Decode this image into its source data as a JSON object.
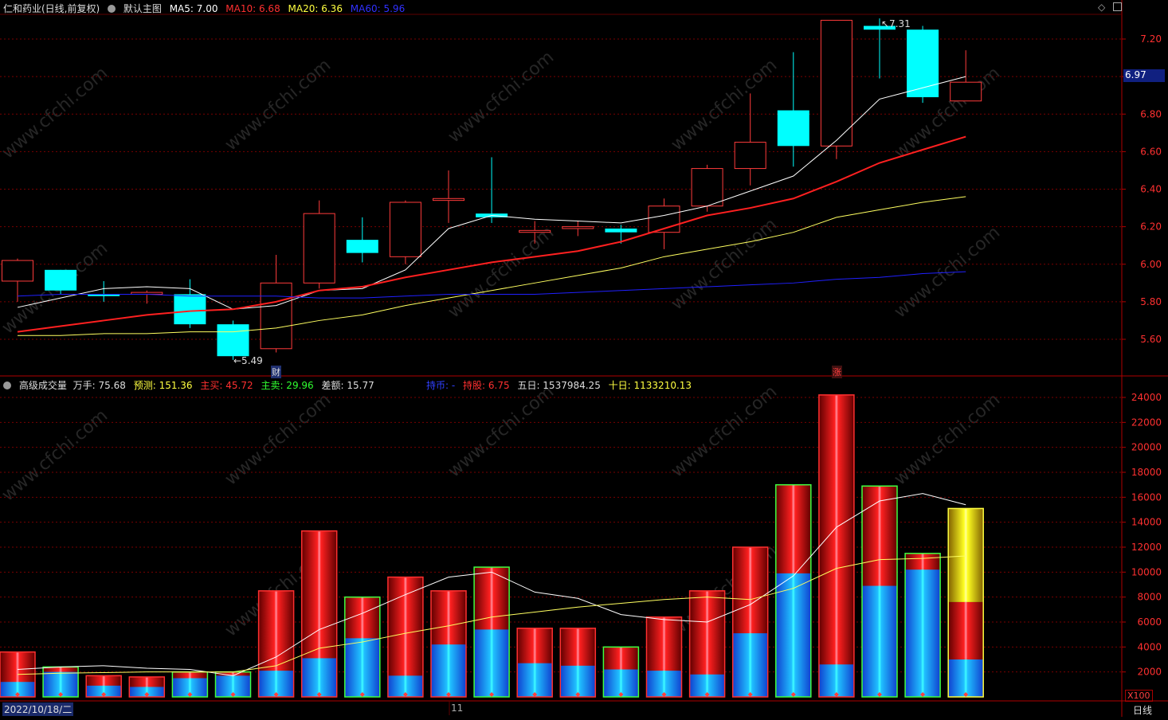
{
  "price_header": {
    "title": "仁和药业(日线,前复权)",
    "template": "默认主图",
    "ma5": "MA5: 7.00",
    "ma10": "MA10: 6.68",
    "ma20": "MA20: 6.36",
    "ma60": "MA60: 5.96"
  },
  "volume_header": {
    "title": "高级成交量",
    "wanshou": "万手: 75.68",
    "forecast": "预测: 151.36",
    "buy": "主买: 45.72",
    "sell": "主卖: 29.96",
    "diff": "差额: 15.77",
    "lockcoin": "持币: -",
    "holdshare": "持股: 6.75",
    "five": "五日: 1537984.25",
    "ten": "十日: 1133210.13"
  },
  "footer": {
    "date": "2022/10/18/二",
    "month_mark": "11",
    "period": "日线",
    "multiplier": "X100"
  },
  "markers": {
    "cai": "财",
    "zhang": "涨",
    "high_label": "7.31",
    "low_label": "5.49",
    "current_price": "6.97"
  },
  "watermark": "www.cfchi.com",
  "colors": {
    "up": "#ff3b3b",
    "down": "#00ffff",
    "ma5": "#ffffff",
    "ma10": "#ff2020",
    "ma20": "#ffff60",
    "ma60": "#2020ff",
    "grid": "#7a0000"
  },
  "chart_data": [
    {
      "type": "candlestick",
      "ylim": [
        5.4,
        7.4
      ],
      "y_ticks": [
        5.6,
        5.8,
        6.0,
        6.2,
        6.4,
        6.6,
        6.8,
        7.0,
        7.2
      ],
      "candles": [
        {
          "o": 5.91,
          "c": 6.02,
          "h": 6.03,
          "l": 5.8
        },
        {
          "o": 5.97,
          "c": 5.86,
          "h": 5.97,
          "l": 5.84
        },
        {
          "o": 5.84,
          "c": 5.83,
          "h": 5.91,
          "l": 5.8
        },
        {
          "o": 5.84,
          "c": 5.85,
          "h": 5.86,
          "l": 5.79
        },
        {
          "o": 5.84,
          "c": 5.68,
          "h": 5.92,
          "l": 5.66
        },
        {
          "o": 5.68,
          "c": 5.51,
          "h": 5.7,
          "l": 5.49
        },
        {
          "o": 5.55,
          "c": 5.9,
          "h": 6.05,
          "l": 5.53
        },
        {
          "o": 5.9,
          "c": 6.27,
          "h": 6.34,
          "l": 5.87
        },
        {
          "o": 6.13,
          "c": 6.06,
          "h": 6.25,
          "l": 6.01
        },
        {
          "o": 6.04,
          "c": 6.33,
          "h": 6.34,
          "l": 6.0
        },
        {
          "o": 6.34,
          "c": 6.35,
          "h": 6.5,
          "l": 6.22
        },
        {
          "o": 6.27,
          "c": 6.25,
          "h": 6.57,
          "l": 6.22
        },
        {
          "o": 6.17,
          "c": 6.18,
          "h": 6.23,
          "l": 6.11
        },
        {
          "o": 6.19,
          "c": 6.2,
          "h": 6.23,
          "l": 6.15
        },
        {
          "o": 6.19,
          "c": 6.17,
          "h": 6.21,
          "l": 6.11
        },
        {
          "o": 6.17,
          "c": 6.31,
          "h": 6.35,
          "l": 6.08
        },
        {
          "o": 6.31,
          "c": 6.51,
          "h": 6.53,
          "l": 6.28
        },
        {
          "o": 6.51,
          "c": 6.65,
          "h": 6.91,
          "l": 6.42
        },
        {
          "o": 6.82,
          "c": 6.63,
          "h": 7.13,
          "l": 6.52
        },
        {
          "o": 6.63,
          "c": 7.3,
          "h": 7.3,
          "l": 6.56
        },
        {
          "o": 7.27,
          "c": 7.25,
          "h": 7.31,
          "l": 6.99
        },
        {
          "o": 7.25,
          "c": 6.89,
          "h": 7.27,
          "l": 6.86
        },
        {
          "o": 6.87,
          "c": 6.97,
          "h": 7.14,
          "l": 6.87
        }
      ],
      "series": [
        {
          "name": "MA5",
          "values": [
            5.77,
            5.82,
            5.87,
            5.88,
            5.87,
            5.76,
            5.78,
            5.86,
            5.87,
            5.97,
            6.19,
            6.26,
            6.24,
            6.23,
            6.22,
            6.26,
            6.31,
            6.39,
            6.47,
            6.66,
            6.88,
            6.94,
            7.0
          ]
        },
        {
          "name": "MA10",
          "values": [
            5.64,
            5.67,
            5.7,
            5.73,
            5.75,
            5.76,
            5.8,
            5.86,
            5.88,
            5.93,
            5.97,
            6.01,
            6.04,
            6.07,
            6.12,
            6.19,
            6.26,
            6.3,
            6.35,
            6.44,
            6.54,
            6.61,
            6.68
          ]
        },
        {
          "name": "MA20",
          "values": [
            5.62,
            5.62,
            5.63,
            5.63,
            5.64,
            5.64,
            5.66,
            5.7,
            5.73,
            5.78,
            5.82,
            5.86,
            5.9,
            5.94,
            5.98,
            6.04,
            6.08,
            6.12,
            6.17,
            6.25,
            6.29,
            6.33,
            6.36
          ]
        },
        {
          "name": "MA60",
          "values": [
            5.83,
            5.84,
            5.84,
            5.84,
            5.83,
            5.83,
            5.83,
            5.82,
            5.82,
            5.83,
            5.84,
            5.84,
            5.84,
            5.85,
            5.86,
            5.87,
            5.88,
            5.89,
            5.9,
            5.92,
            5.93,
            5.95,
            5.96
          ]
        }
      ]
    },
    {
      "type": "bar",
      "unit_multiplier": "X100",
      "ylim": [
        0,
        25000
      ],
      "y_ticks": [
        2000,
        4000,
        6000,
        8000,
        10000,
        12000,
        14000,
        16000,
        18000,
        20000,
        22000,
        24000
      ],
      "volumes": [
        3600,
        2400,
        1700,
        1600,
        2000,
        2000,
        8500,
        13300,
        8000,
        9600,
        8500,
        10400,
        5500,
        5500,
        4000,
        6400,
        8500,
        12000,
        17000,
        24200,
        16900,
        11500,
        15100
      ],
      "main_sell": [
        1200,
        2000,
        900,
        800,
        1500,
        1700,
        2100,
        3100,
        4700,
        1700,
        4200,
        5400,
        2700,
        2500,
        2200,
        2100,
        1800,
        5100,
        9900,
        2600,
        8900,
        10200,
        3000
      ],
      "up_day": [
        true,
        false,
        true,
        true,
        false,
        false,
        true,
        true,
        false,
        true,
        true,
        false,
        true,
        true,
        false,
        true,
        true,
        true,
        false,
        true,
        false,
        false,
        true
      ],
      "forecast_extra": [
        0,
        0,
        0,
        0,
        0,
        0,
        0,
        0,
        0,
        0,
        0,
        0,
        0,
        0,
        0,
        0,
        0,
        0,
        0,
        0,
        0,
        0,
        7500
      ],
      "series": [
        {
          "name": "五日",
          "values": [
            2200,
            2400,
            2500,
            2300,
            2200,
            1700,
            3200,
            5400,
            6700,
            8200,
            9600,
            10000,
            8400,
            7900,
            6600,
            6200,
            6000,
            7400,
            9700,
            13600,
            15700,
            16300,
            15400
          ]
        },
        {
          "name": "十日",
          "values": [
            1800,
            1900,
            1950,
            2000,
            2000,
            2000,
            2500,
            3900,
            4400,
            5100,
            5700,
            6400,
            6800,
            7200,
            7500,
            7800,
            8000,
            7800,
            8700,
            10300,
            11000,
            11100,
            11300
          ]
        }
      ]
    }
  ]
}
